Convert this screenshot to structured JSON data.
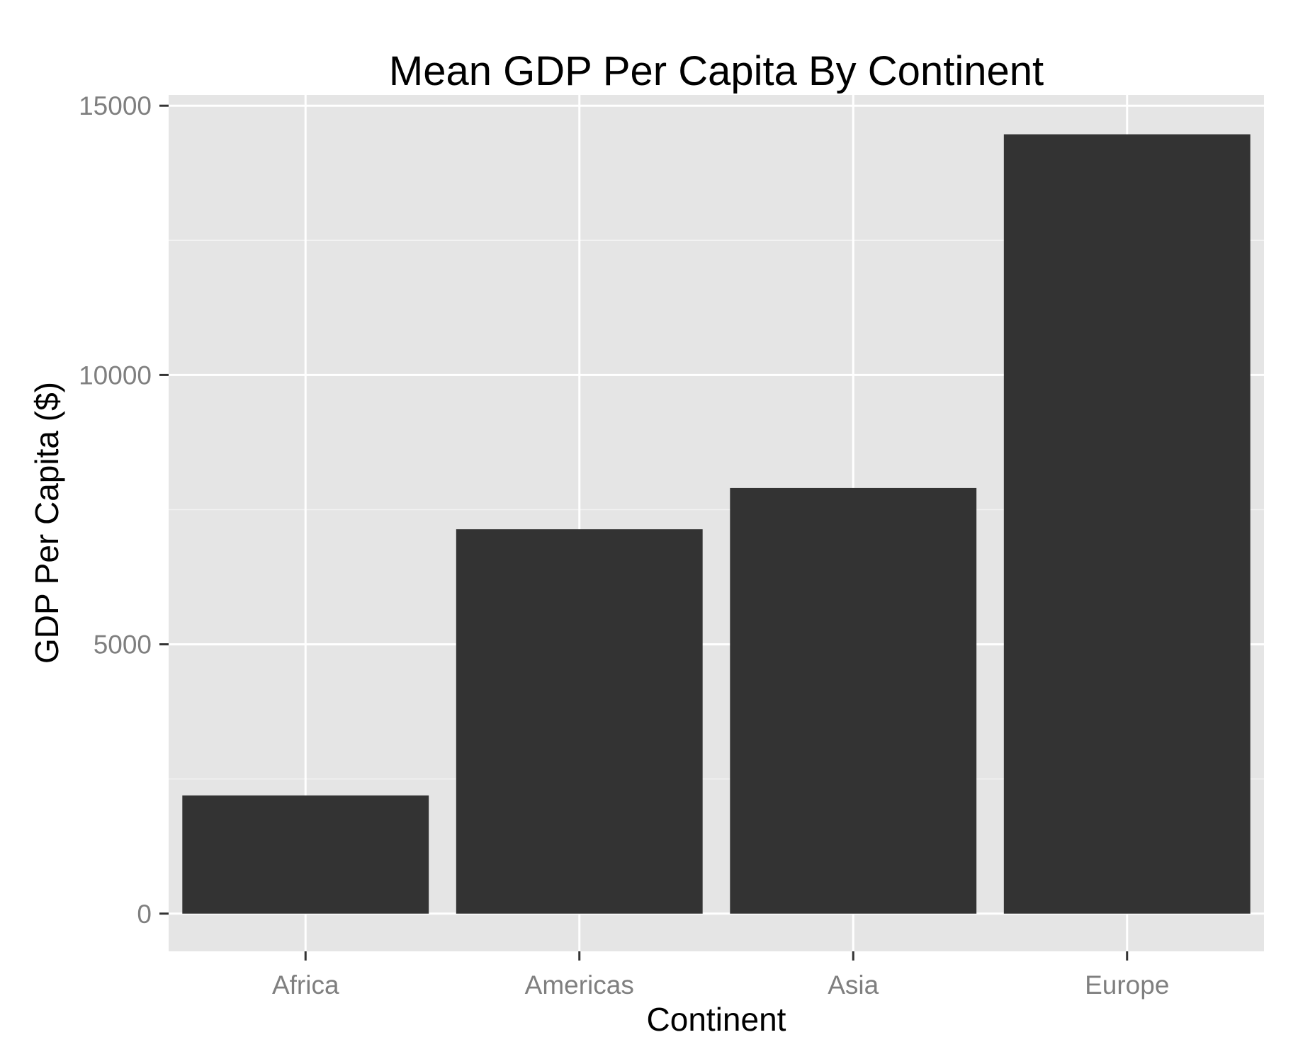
{
  "chart_data": {
    "type": "bar",
    "title": "Mean GDP Per Capita By Continent",
    "xlabel": "Continent",
    "ylabel": "GDP Per Capita ($)",
    "categories": [
      "Africa",
      "Americas",
      "Asia",
      "Europe"
    ],
    "values": [
      2194,
      7136,
      7902,
      14469
    ],
    "ylim": [
      -700,
      15200
    ],
    "yticks": [
      0,
      5000,
      10000,
      15000
    ],
    "ytick_labels": [
      "0",
      "5000",
      "10000",
      "15000"
    ],
    "grid": true,
    "legend": "none",
    "colors": {
      "bar": "#333333",
      "panel": "#e5e5e5",
      "grid_major": "#ffffff",
      "grid_minor": "#f2f2f2",
      "tick": "#333333",
      "tick_label": "#7f7f7f"
    }
  }
}
